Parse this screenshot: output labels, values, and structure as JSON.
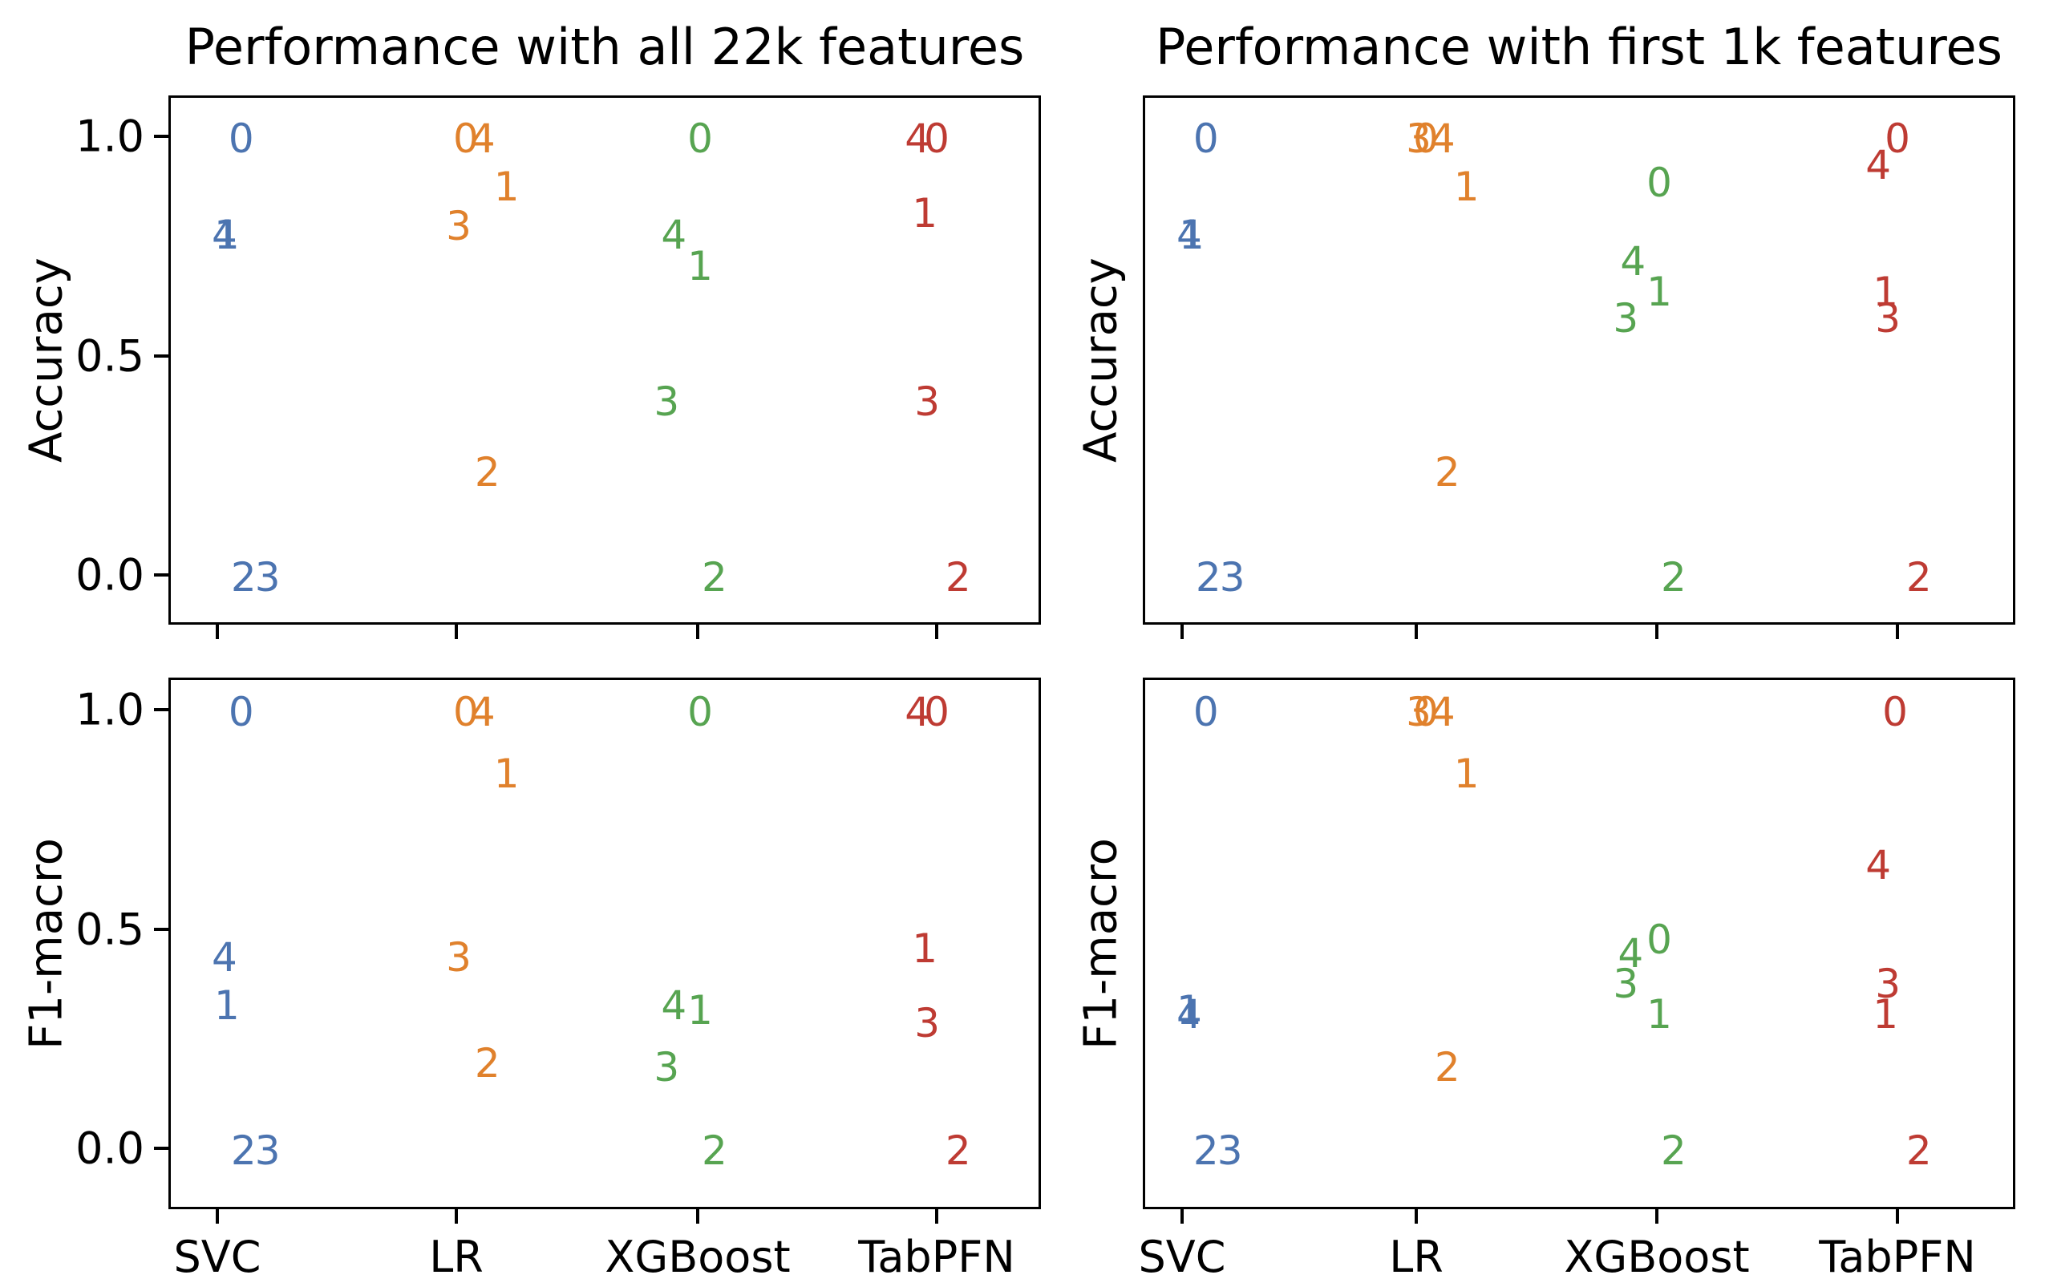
{
  "figure": {
    "background": "#ffffff",
    "spine_color": "#000000",
    "palette": {
      "SVC": "#4C74B0",
      "LR": "#E0812C",
      "XGBoost": "#57A451",
      "TabPFN": "#BE3B33"
    },
    "marker_note": "class-index digits 0-4 drawn as colored text markers, one color per classifier column"
  },
  "chart_data": [
    {
      "type": "scatter",
      "title": "Performance with all 22k features",
      "ylabel": "Accuracy",
      "xlabel": "",
      "x_categories": [
        "SVC",
        "LR",
        "XGBoost",
        "TabPFN"
      ],
      "yticks": [
        "1.0",
        "0.5",
        "0.0"
      ],
      "ylim": [
        -0.1,
        1.1
      ],
      "grid": false,
      "legend": "none",
      "show_title": true,
      "show_ytick_labels": true,
      "show_xtick_labels": false,
      "series": [
        {
          "name": "SVC",
          "color": "#4C74B0",
          "points": [
            {
              "label": "0",
              "y": 1.0,
              "dx": 0.09
            },
            {
              "label": "1",
              "y": 0.78,
              "dx": 0.03
            },
            {
              "label": "2",
              "y": 0.0,
              "dx": 0.1
            },
            {
              "label": "3",
              "y": 0.0,
              "dx": 0.2
            },
            {
              "label": "4",
              "y": 0.78,
              "dx": 0.02
            }
          ]
        },
        {
          "name": "LR",
          "color": "#E0812C",
          "points": [
            {
              "label": "0",
              "y": 1.0,
              "dx": 0.03
            },
            {
              "label": "1",
              "y": 0.89,
              "dx": 0.2
            },
            {
              "label": "2",
              "y": 0.24,
              "dx": 0.12
            },
            {
              "label": "3",
              "y": 0.8,
              "dx": 0.0
            },
            {
              "label": "4",
              "y": 1.0,
              "dx": 0.1
            }
          ]
        },
        {
          "name": "XGBoost",
          "color": "#57A451",
          "points": [
            {
              "label": "0",
              "y": 1.0,
              "dx": 0.0
            },
            {
              "label": "1",
              "y": 0.71,
              "dx": 0.0
            },
            {
              "label": "2",
              "y": 0.0,
              "dx": 0.06
            },
            {
              "label": "3",
              "y": 0.4,
              "dx": -0.14
            },
            {
              "label": "4",
              "y": 0.78,
              "dx": -0.11
            }
          ]
        },
        {
          "name": "TabPFN",
          "color": "#BE3B33",
          "points": [
            {
              "label": "0",
              "y": 1.0,
              "dx": -0.01
            },
            {
              "label": "1",
              "y": 0.83,
              "dx": -0.06
            },
            {
              "label": "2",
              "y": 0.0,
              "dx": 0.08
            },
            {
              "label": "3",
              "y": 0.4,
              "dx": -0.05
            },
            {
              "label": "4",
              "y": 1.0,
              "dx": -0.09
            }
          ]
        }
      ]
    },
    {
      "type": "scatter",
      "title": "Performance with first 1k features",
      "ylabel": "Accuracy",
      "xlabel": "",
      "x_categories": [
        "SVC",
        "LR",
        "XGBoost",
        "TabPFN"
      ],
      "yticks": [
        "1.0",
        "0.5",
        "0.0"
      ],
      "ylim": [
        -0.1,
        1.1
      ],
      "grid": false,
      "legend": "none",
      "show_title": true,
      "show_ytick_labels": false,
      "show_xtick_labels": false,
      "series": [
        {
          "name": "SVC",
          "color": "#4C74B0",
          "points": [
            {
              "label": "0",
              "y": 1.0,
              "dx": 0.09
            },
            {
              "label": "1",
              "y": 0.78,
              "dx": 0.03
            },
            {
              "label": "2",
              "y": 0.0,
              "dx": 0.1
            },
            {
              "label": "3",
              "y": 0.0,
              "dx": 0.2
            },
            {
              "label": "4",
              "y": 0.78,
              "dx": 0.02
            }
          ]
        },
        {
          "name": "LR",
          "color": "#E0812C",
          "points": [
            {
              "label": "0",
              "y": 1.0,
              "dx": 0.03
            },
            {
              "label": "1",
              "y": 0.89,
              "dx": 0.2
            },
            {
              "label": "2",
              "y": 0.24,
              "dx": 0.12
            },
            {
              "label": "3",
              "y": 1.0,
              "dx": 0.0
            },
            {
              "label": "4",
              "y": 1.0,
              "dx": 0.1
            }
          ]
        },
        {
          "name": "XGBoost",
          "color": "#57A451",
          "points": [
            {
              "label": "0",
              "y": 0.9,
              "dx": 0.0
            },
            {
              "label": "1",
              "y": 0.65,
              "dx": 0.0
            },
            {
              "label": "2",
              "y": 0.0,
              "dx": 0.06
            },
            {
              "label": "3",
              "y": 0.59,
              "dx": -0.14
            },
            {
              "label": "4",
              "y": 0.72,
              "dx": -0.11
            }
          ]
        },
        {
          "name": "TabPFN",
          "color": "#BE3B33",
          "points": [
            {
              "label": "0",
              "y": 1.0,
              "dx": -0.01
            },
            {
              "label": "1",
              "y": 0.65,
              "dx": -0.06
            },
            {
              "label": "2",
              "y": 0.0,
              "dx": 0.08
            },
            {
              "label": "3",
              "y": 0.59,
              "dx": -0.05
            },
            {
              "label": "4",
              "y": 0.94,
              "dx": -0.09
            }
          ]
        }
      ]
    },
    {
      "type": "scatter",
      "title": "",
      "ylabel": "F1-macro",
      "xlabel": "",
      "x_categories": [
        "SVC",
        "LR",
        "XGBoost",
        "TabPFN"
      ],
      "yticks": [
        "1.0",
        "0.5",
        "0.0"
      ],
      "ylim": [
        -0.1,
        1.1
      ],
      "grid": false,
      "legend": "none",
      "show_title": false,
      "show_ytick_labels": true,
      "show_xtick_labels": true,
      "series": [
        {
          "name": "SVC",
          "color": "#4C74B0",
          "points": [
            {
              "label": "0",
              "y": 1.0,
              "dx": 0.09
            },
            {
              "label": "1",
              "y": 0.33,
              "dx": 0.03
            },
            {
              "label": "2",
              "y": 0.0,
              "dx": 0.1
            },
            {
              "label": "3",
              "y": 0.0,
              "dx": 0.2
            },
            {
              "label": "4",
              "y": 0.44,
              "dx": 0.02
            }
          ]
        },
        {
          "name": "LR",
          "color": "#E0812C",
          "points": [
            {
              "label": "0",
              "y": 1.0,
              "dx": 0.03
            },
            {
              "label": "1",
              "y": 0.86,
              "dx": 0.2
            },
            {
              "label": "2",
              "y": 0.2,
              "dx": 0.12
            },
            {
              "label": "3",
              "y": 0.44,
              "dx": 0.0
            },
            {
              "label": "4",
              "y": 1.0,
              "dx": 0.1
            }
          ]
        },
        {
          "name": "XGBoost",
          "color": "#57A451",
          "points": [
            {
              "label": "0",
              "y": 1.0,
              "dx": 0.0
            },
            {
              "label": "1",
              "y": 0.32,
              "dx": 0.0
            },
            {
              "label": "2",
              "y": 0.0,
              "dx": 0.06
            },
            {
              "label": "3",
              "y": 0.19,
              "dx": -0.14
            },
            {
              "label": "4",
              "y": 0.33,
              "dx": -0.11
            }
          ]
        },
        {
          "name": "TabPFN",
          "color": "#BE3B33",
          "points": [
            {
              "label": "0",
              "y": 1.0,
              "dx": -0.01
            },
            {
              "label": "1",
              "y": 0.46,
              "dx": -0.06
            },
            {
              "label": "2",
              "y": 0.0,
              "dx": 0.08
            },
            {
              "label": "3",
              "y": 0.29,
              "dx": -0.05
            },
            {
              "label": "4",
              "y": 1.0,
              "dx": -0.09
            }
          ]
        }
      ]
    },
    {
      "type": "scatter",
      "title": "",
      "ylabel": "F1-macro",
      "xlabel": "",
      "x_categories": [
        "SVC",
        "LR",
        "XGBoost",
        "TabPFN"
      ],
      "yticks": [
        "1.0",
        "0.5",
        "0.0"
      ],
      "ylim": [
        -0.1,
        1.1
      ],
      "grid": false,
      "legend": "none",
      "show_title": false,
      "show_ytick_labels": false,
      "show_xtick_labels": true,
      "series": [
        {
          "name": "SVC",
          "color": "#4C74B0",
          "points": [
            {
              "label": "0",
              "y": 1.0,
              "dx": 0.09
            },
            {
              "label": "1",
              "y": 0.32,
              "dx": 0.02
            },
            {
              "label": "2",
              "y": 0.0,
              "dx": 0.09
            },
            {
              "label": "3",
              "y": 0.0,
              "dx": 0.19
            },
            {
              "label": "4",
              "y": 0.31,
              "dx": 0.02
            }
          ]
        },
        {
          "name": "LR",
          "color": "#E0812C",
          "points": [
            {
              "label": "0",
              "y": 1.0,
              "dx": 0.03
            },
            {
              "label": "1",
              "y": 0.86,
              "dx": 0.2
            },
            {
              "label": "2",
              "y": 0.19,
              "dx": 0.12
            },
            {
              "label": "3",
              "y": 1.0,
              "dx": 0.0
            },
            {
              "label": "4",
              "y": 1.0,
              "dx": 0.1
            }
          ]
        },
        {
          "name": "XGBoost",
          "color": "#57A451",
          "points": [
            {
              "label": "0",
              "y": 0.48,
              "dx": 0.0
            },
            {
              "label": "1",
              "y": 0.31,
              "dx": 0.0
            },
            {
              "label": "2",
              "y": 0.0,
              "dx": 0.06
            },
            {
              "label": "3",
              "y": 0.38,
              "dx": -0.14
            },
            {
              "label": "4",
              "y": 0.45,
              "dx": -0.12
            }
          ]
        },
        {
          "name": "TabPFN",
          "color": "#BE3B33",
          "points": [
            {
              "label": "0",
              "y": 1.0,
              "dx": -0.02
            },
            {
              "label": "1",
              "y": 0.31,
              "dx": -0.06
            },
            {
              "label": "2",
              "y": 0.0,
              "dx": 0.08
            },
            {
              "label": "3",
              "y": 0.38,
              "dx": -0.05
            },
            {
              "label": "4",
              "y": 0.65,
              "dx": -0.09
            }
          ]
        }
      ]
    }
  ]
}
